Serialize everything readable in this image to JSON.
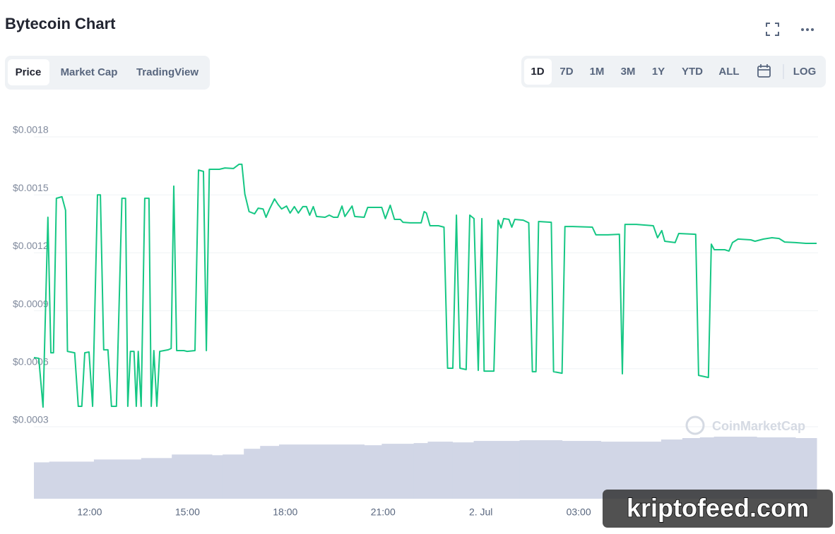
{
  "header": {
    "title": "Bytecoin Chart"
  },
  "tabs": [
    "Price",
    "Market Cap",
    "TradingView"
  ],
  "ranges": [
    "1D",
    "7D",
    "1M",
    "3M",
    "1Y",
    "YTD",
    "ALL"
  ],
  "log_button": "LOG",
  "watermarks": {
    "chart": "CoinMarketCap",
    "overlay": "kriptofeed.com"
  },
  "chart_data": {
    "type": "line",
    "ylim": [
      0.0003,
      0.0018
    ],
    "yticks": [
      {
        "value": 0.0003,
        "label": "$0.0003"
      },
      {
        "value": 0.0006,
        "label": "$0.0006"
      },
      {
        "value": 0.0009,
        "label": "$0.0009"
      },
      {
        "value": 0.0012,
        "label": "$0.0012"
      },
      {
        "value": 0.0015,
        "label": "$0.0015"
      },
      {
        "value": 0.0018,
        "label": "$0.0018"
      }
    ],
    "xlim": [
      10.29,
      34.3
    ],
    "xticks": [
      {
        "value": 12,
        "label": "12:00"
      },
      {
        "value": 15,
        "label": "15:00"
      },
      {
        "value": 18,
        "label": "18:00"
      },
      {
        "value": 21,
        "label": "21:00"
      },
      {
        "value": 24,
        "label": "2. Jul"
      },
      {
        "value": 27,
        "label": "03:00"
      }
    ],
    "grid": true,
    "series": [
      {
        "color": "#16c784",
        "x": [
          10.29,
          10.44,
          10.57,
          10.72,
          10.81,
          10.89,
          10.98,
          11.15,
          11.26,
          11.32,
          11.54,
          11.65,
          11.76,
          11.85,
          11.98,
          12.09,
          12.24,
          12.33,
          12.43,
          12.56,
          12.67,
          12.82,
          12.99,
          13.1,
          13.17,
          13.25,
          13.36,
          13.43,
          13.49,
          13.58,
          13.69,
          13.82,
          13.89,
          13.97,
          14.06,
          14.15,
          14.41,
          14.5,
          14.58,
          14.67,
          14.89,
          14.99,
          15.23,
          15.34,
          15.49,
          15.58,
          15.67,
          15.98,
          16.15,
          16.41,
          16.58,
          16.67,
          16.76,
          16.89,
          17.06,
          17.17,
          17.32,
          17.41,
          17.52,
          17.67,
          17.78,
          17.89,
          18.04,
          18.15,
          18.28,
          18.4,
          18.54,
          18.65,
          18.75,
          18.86,
          18.96,
          19.22,
          19.35,
          19.48,
          19.61,
          19.74,
          19.83,
          20.05,
          20.13,
          20.42,
          20.53,
          20.96,
          21.07,
          21.22,
          21.35,
          21.53,
          21.61,
          21.83,
          22.17,
          22.26,
          22.33,
          22.44,
          22.7,
          22.87,
          22.98,
          23.14,
          23.25,
          23.36,
          23.55,
          23.66,
          23.79,
          23.92,
          24.03,
          24.1,
          24.4,
          24.53,
          24.62,
          24.7,
          24.86,
          24.95,
          25.04,
          25.3,
          25.47,
          25.58,
          25.69,
          25.77,
          26.16,
          26.23,
          26.49,
          26.58,
          26.82,
          27.42,
          27.53,
          27.9,
          28.25,
          28.34,
          28.42,
          28.77,
          29.29,
          29.42,
          29.55,
          29.64,
          29.96,
          30.07,
          30.59,
          30.68,
          30.98,
          31.07,
          31.16,
          31.48,
          31.61,
          31.72,
          31.89,
          32.28,
          32.41,
          32.67,
          32.93,
          33.15,
          33.32,
          33.65,
          33.97,
          34.3
        ],
        "values": [
          0.000658,
          0.000654,
          0.000402,
          0.001384,
          0.000683,
          0.000683,
          0.001482,
          0.00149,
          0.00142,
          0.00069,
          0.000683,
          0.000406,
          0.000406,
          0.000683,
          0.000687,
          0.000406,
          0.0015,
          0.0015,
          0.000698,
          0.000698,
          0.000406,
          0.000406,
          0.001482,
          0.001482,
          0.000406,
          0.00069,
          0.00069,
          0.000406,
          0.00069,
          0.000406,
          0.001482,
          0.001482,
          0.000406,
          0.000694,
          0.000406,
          0.00069,
          0.000698,
          0.000705,
          0.001545,
          0.000694,
          0.000694,
          0.00069,
          0.000694,
          0.001628,
          0.001621,
          0.000694,
          0.001632,
          0.001632,
          0.001639,
          0.001636,
          0.001658,
          0.001658,
          0.001504,
          0.001413,
          0.001402,
          0.001431,
          0.001427,
          0.001384,
          0.001427,
          0.001479,
          0.00145,
          0.001427,
          0.001442,
          0.001406,
          0.001439,
          0.001406,
          0.001439,
          0.001439,
          0.001395,
          0.001439,
          0.001388,
          0.001384,
          0.001395,
          0.001384,
          0.001384,
          0.001442,
          0.001388,
          0.001442,
          0.001388,
          0.001384,
          0.001435,
          0.001435,
          0.001377,
          0.001446,
          0.001373,
          0.001373,
          0.001358,
          0.001355,
          0.001355,
          0.001413,
          0.001406,
          0.00134,
          0.00134,
          0.001333,
          0.000603,
          0.000603,
          0.001395,
          0.000603,
          0.000596,
          0.001395,
          0.001377,
          0.000592,
          0.001377,
          0.000588,
          0.000588,
          0.001369,
          0.001329,
          0.001377,
          0.001373,
          0.001333,
          0.001373,
          0.001369,
          0.001355,
          0.000585,
          0.000585,
          0.001362,
          0.001358,
          0.000585,
          0.000577,
          0.001336,
          0.001336,
          0.001333,
          0.001293,
          0.001293,
          0.001296,
          0.000574,
          0.001347,
          0.001347,
          0.00134,
          0.001278,
          0.001315,
          0.00126,
          0.001253,
          0.0013,
          0.001296,
          0.000566,
          0.000555,
          0.001245,
          0.001216,
          0.001216,
          0.001209,
          0.001253,
          0.001271,
          0.001267,
          0.00126,
          0.001271,
          0.001278,
          0.001274,
          0.001256,
          0.001253,
          0.001249,
          0.001249
        ]
      }
    ],
    "volume": {
      "color": "#d1d6e6",
      "x": [
        10.29,
        10.76,
        11.37,
        12.13,
        13.58,
        14.52,
        15.75,
        16.08,
        16.73,
        17.23,
        17.81,
        18.36,
        20.42,
        20.96,
        21.94,
        22.37,
        23.13,
        23.78,
        25.19,
        26.49,
        27.68,
        29.53,
        30.18,
        30.72,
        31.15,
        32.46,
        33.11,
        33.65
      ],
      "values": [
        51,
        52,
        52,
        55,
        57,
        62,
        61,
        62,
        70,
        74,
        76,
        76,
        75,
        77,
        78,
        80,
        79,
        81,
        82,
        81,
        80,
        83,
        85,
        86,
        87,
        86,
        86,
        85
      ]
    }
  }
}
